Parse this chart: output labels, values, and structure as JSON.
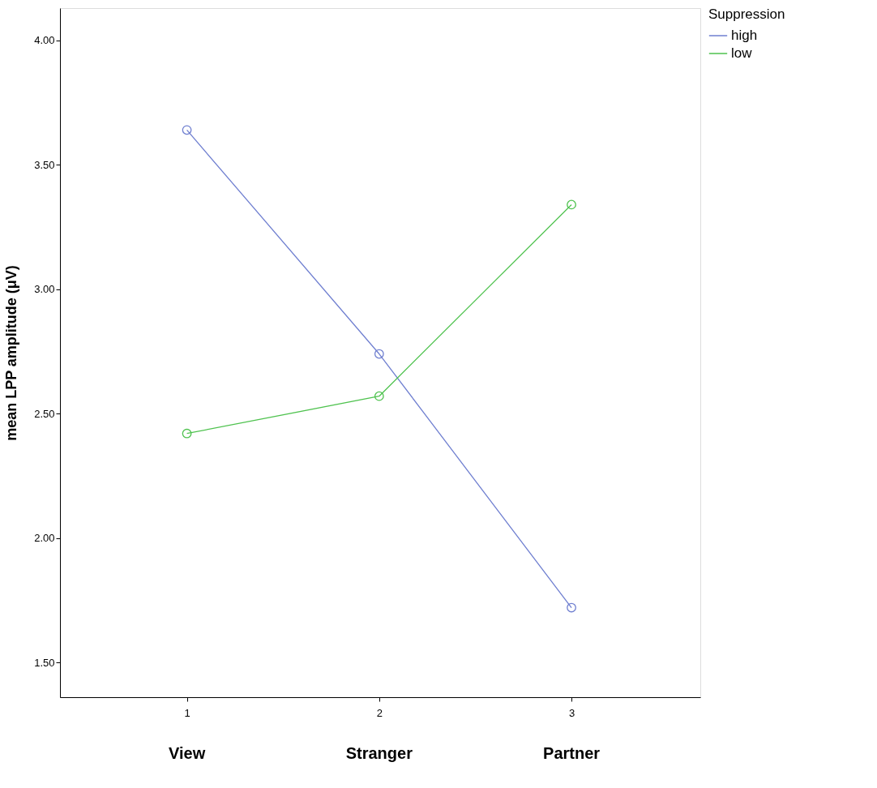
{
  "chart_data": {
    "type": "line",
    "x": [
      1,
      2,
      3
    ],
    "xlim": [
      0.34,
      3.67
    ],
    "xticks": [
      1,
      2,
      3
    ],
    "ylim": [
      1.36,
      4.13
    ],
    "yticks": [
      {
        "value": 1.5,
        "label": "1.50"
      },
      {
        "value": 2.0,
        "label": "2.00"
      },
      {
        "value": 2.5,
        "label": "2.50"
      },
      {
        "value": 3.0,
        "label": "3.00"
      },
      {
        "value": 3.5,
        "label": "3.50"
      },
      {
        "value": 4.0,
        "label": "4.00"
      }
    ],
    "ylabel": "mean LPP amplitude (μV)",
    "legend_title": "Suppression",
    "legend": "top right",
    "grid": false,
    "marker": "circle",
    "line_style": "solid",
    "annotations": [
      "View",
      "Stranger",
      "Partner"
    ],
    "series": [
      {
        "name": "high",
        "color": "#6f7fd0",
        "values": [
          3.64,
          2.74,
          1.72
        ]
      },
      {
        "name": "low",
        "color": "#4ec24e",
        "values": [
          2.42,
          2.57,
          3.34
        ]
      }
    ]
  }
}
